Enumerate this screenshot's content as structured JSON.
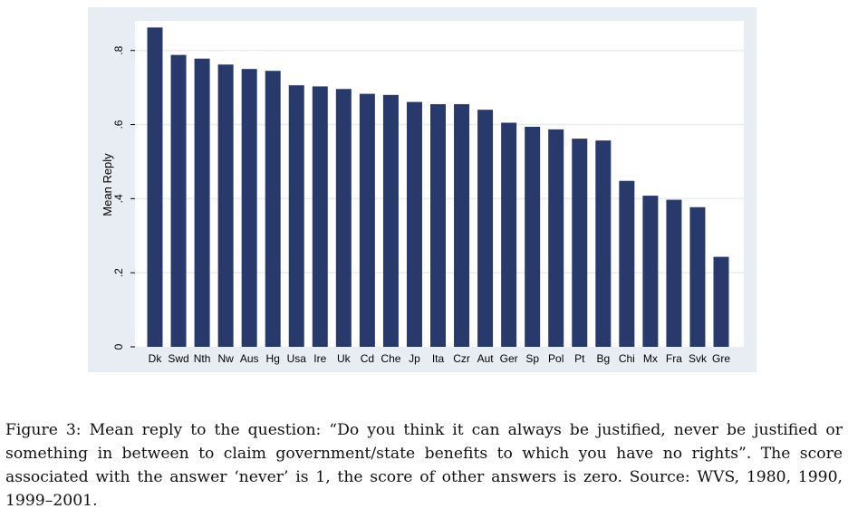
{
  "chart_data": {
    "type": "bar",
    "title": "",
    "xlabel": "",
    "ylabel": "Mean Reply",
    "ylim": [
      0,
      0.88
    ],
    "yticks": [
      0,
      0.2,
      0.4,
      0.6,
      0.8
    ],
    "ytick_labels": [
      "0",
      ".2",
      ".4",
      ".6",
      ".8"
    ],
    "grid": true,
    "legend": "none",
    "bar_color": "#28396b",
    "categories": [
      "Dk",
      "Swd",
      "Nth",
      "Nw",
      "Aus",
      "Hg",
      "Usa",
      "Ire",
      "Uk",
      "Cd",
      "Che",
      "Jp",
      "Ita",
      "Czr",
      "Aut",
      "Ger",
      "Sp",
      "Pol",
      "Pt",
      "Bg",
      "Chi",
      "Mx",
      "Fra",
      "Svk",
      "Gre"
    ],
    "values": [
      0.862,
      0.788,
      0.778,
      0.762,
      0.75,
      0.745,
      0.706,
      0.703,
      0.696,
      0.683,
      0.68,
      0.661,
      0.655,
      0.655,
      0.64,
      0.605,
      0.594,
      0.587,
      0.562,
      0.557,
      0.448,
      0.408,
      0.397,
      0.377,
      0.243
    ]
  },
  "caption": "Figure 3: Mean reply to the question: “Do you think it can always be justified, never be justified or something in between to claim government/state benefits to which you have no rights”. The score associated with the answer ‘never’ is 1, the score of other answers is zero. Source: WVS, 1980, 1990, 1999–2001."
}
